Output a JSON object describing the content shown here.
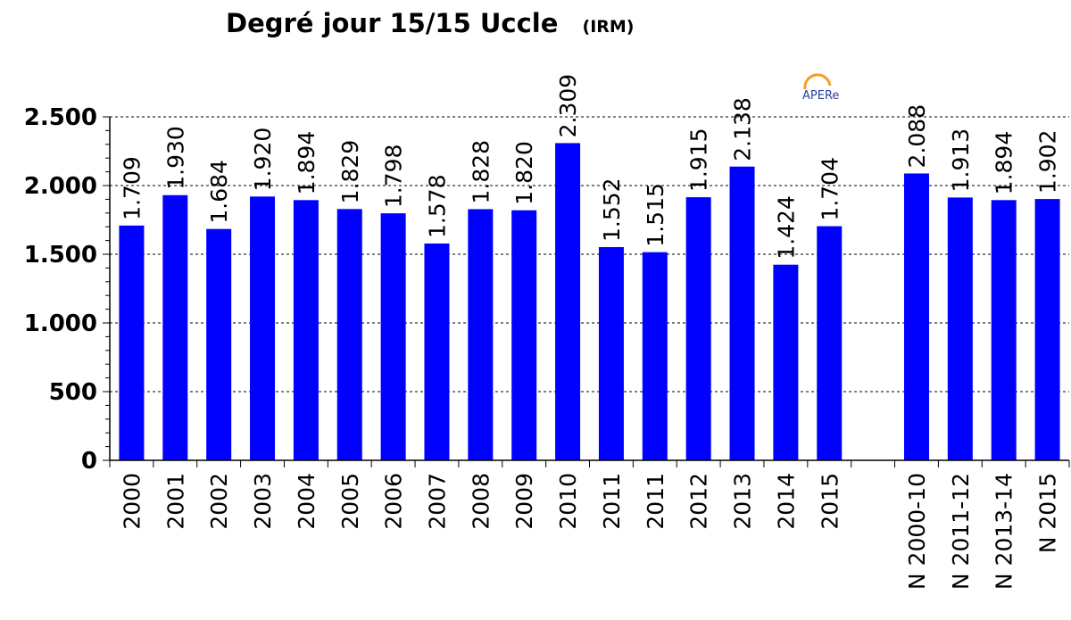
{
  "chart_data": {
    "type": "bar",
    "title": "Degré jour 15/15  Uccle",
    "subtitle": "(IRM)",
    "xlabel": "",
    "ylabel": "",
    "ylim": [
      0,
      2500
    ],
    "yticks": [
      0,
      500,
      1000,
      1500,
      2000,
      2500
    ],
    "ytick_labels": [
      "0",
      "500",
      "1.000",
      "1.500",
      "2.000",
      "2.500"
    ],
    "grid": true,
    "bar_color": "#0000ff",
    "categories": [
      "2000",
      "2001",
      "2002",
      "2003",
      "2004",
      "2005",
      "2006",
      "2007",
      "2008",
      "2009",
      "2010",
      "2011",
      "2011",
      "2012",
      "2013",
      "2014",
      "2015",
      "",
      "N 2000-10",
      "N 2011-12",
      "N 2013-14",
      "N 2015"
    ],
    "values": [
      1709,
      1930,
      1684,
      1920,
      1894,
      1829,
      1798,
      1578,
      1828,
      1820,
      2309,
      1552,
      1515,
      1915,
      2138,
      1424,
      1704,
      null,
      2088,
      1913,
      1894,
      1902
    ],
    "data_labels": [
      "1.709",
      "1.930",
      "1.684",
      "1.920",
      "1.894",
      "1.829",
      "1.798",
      "1.578",
      "1.828",
      "1.820",
      "2.309",
      "1.552",
      "1.515",
      "1.915",
      "2.138",
      "1.424",
      "1.704",
      "",
      "2.088",
      "1.913",
      "1.894",
      "1.902"
    ]
  },
  "logo": {
    "text": "APERe",
    "icon": "apere-logo",
    "colors": {
      "arc": "#f0a020",
      "text": "#2a3f9a"
    }
  }
}
